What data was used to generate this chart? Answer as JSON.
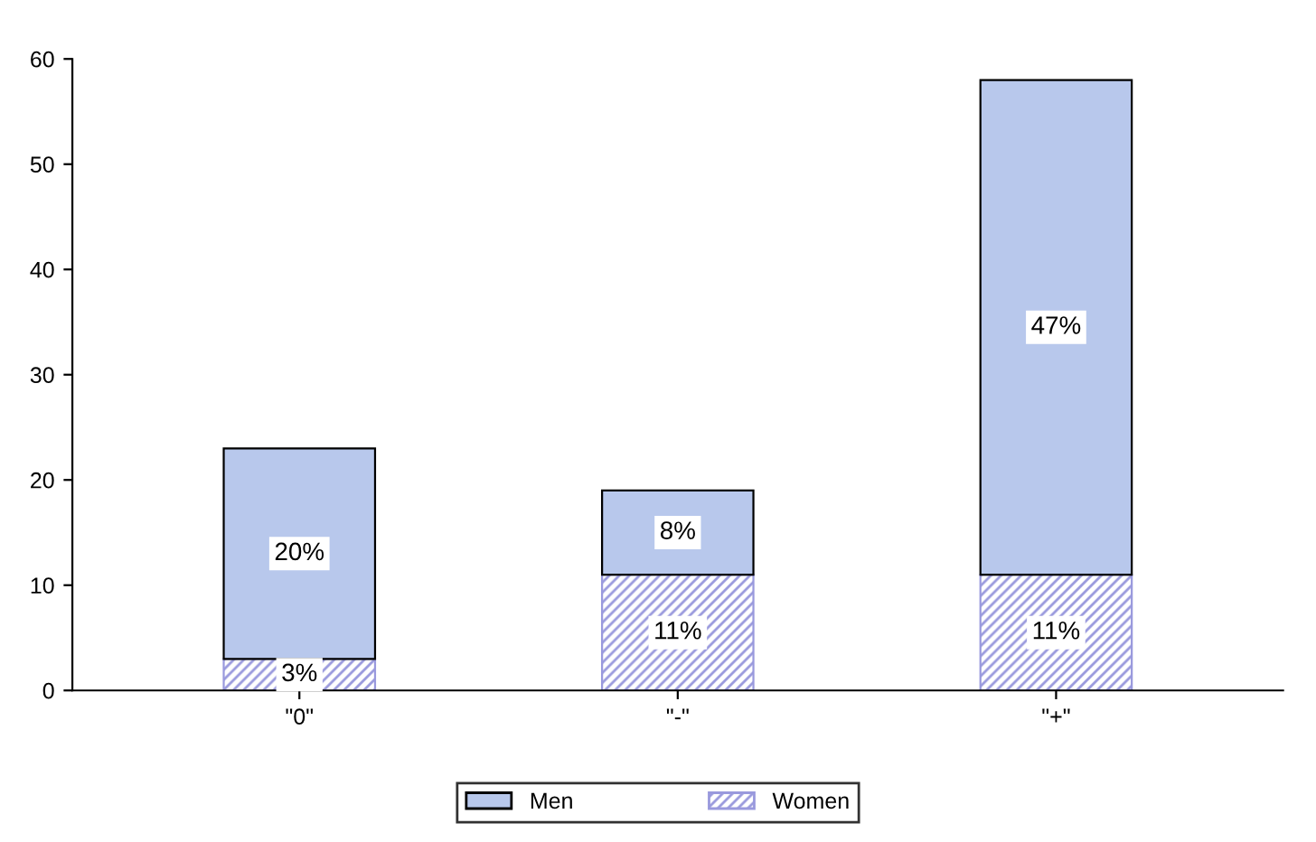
{
  "chart_data": {
    "type": "bar",
    "stacked": true,
    "categories": [
      "\"0\"",
      "\"-\"",
      "\"+\""
    ],
    "series": [
      {
        "name": "Women",
        "color": "#9999dd",
        "values": [
          3,
          11,
          11
        ],
        "value_labels": [
          "3%",
          "11%",
          "11%"
        ]
      },
      {
        "name": "Men",
        "color": "#b8c8ec",
        "values": [
          20,
          8,
          47
        ],
        "value_labels": [
          "20%",
          "8%",
          "47%"
        ]
      }
    ],
    "ylim": [
      0,
      60
    ],
    "yticks": [
      0,
      10,
      20,
      30,
      40,
      50,
      60
    ],
    "grid": false,
    "legend": "bottom"
  }
}
